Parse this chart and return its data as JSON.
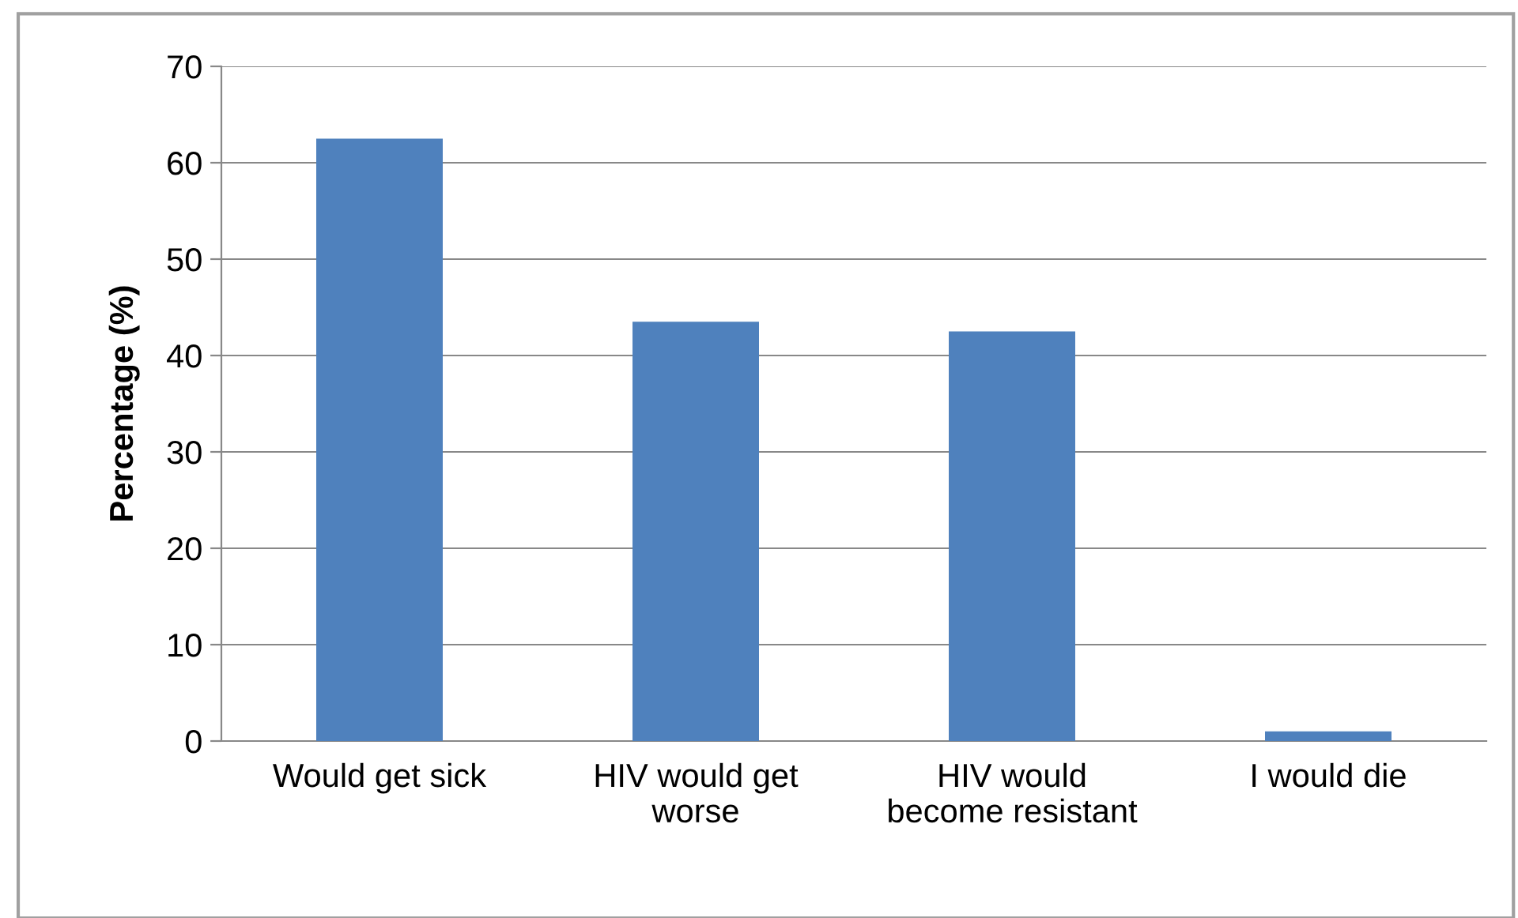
{
  "chart_data": {
    "type": "bar",
    "ylabel": "Percentage (%)",
    "categories": [
      "Would get sick",
      "HIV would get\nworse",
      "HIV would\nbecome resistant",
      "I would die"
    ],
    "values": [
      62.5,
      43.5,
      42.5,
      1.0
    ],
    "color": "#4f81bd",
    "ylim": [
      0,
      70
    ],
    "yticks": [
      0,
      10,
      20,
      30,
      40,
      50,
      60,
      70
    ],
    "grid": "y"
  }
}
